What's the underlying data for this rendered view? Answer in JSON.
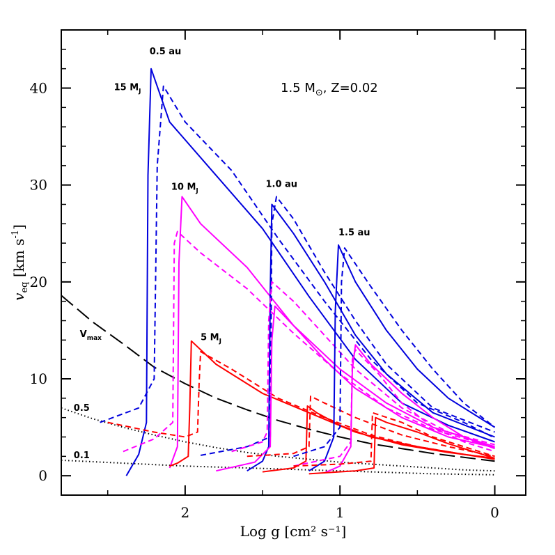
{
  "chart_data": {
    "type": "line",
    "title": "1.5 M⊙, Z=0.02",
    "title_parts": {
      "main": "1.5 M",
      "sub": "⊙",
      "rest": ", Z=0.02"
    },
    "xlabel": "Log g [cm² s⁻¹]",
    "ylabel_parts": {
      "main": "v",
      "sub": "eq",
      "rest": " [km s",
      "sup": "-1",
      "end": "]"
    },
    "xlim": [
      2.8,
      -0.2
    ],
    "ylim": [
      -2,
      46
    ],
    "x_ticks": [
      2,
      1,
      0
    ],
    "x_tick_labels": [
      "2",
      "1",
      "0"
    ],
    "y_ticks": [
      0,
      10,
      20,
      30,
      40
    ],
    "y_tick_labels": [
      "0",
      "10",
      "20",
      "30",
      "40"
    ],
    "annotations": [
      {
        "text": "0.5 au",
        "x": 2.23,
        "y": 43.5
      },
      {
        "text": "1.0 au",
        "x": 1.48,
        "y": 29.8
      },
      {
        "text": "1.5 au",
        "x": 1.01,
        "y": 24.8
      },
      {
        "text": "15 M",
        "sub": "J",
        "x": 2.46,
        "y": 39.8
      },
      {
        "text": "10 M",
        "sub": "J",
        "x": 2.09,
        "y": 29.5
      },
      {
        "text": "5 M",
        "sub": "J",
        "x": 1.9,
        "y": 14.0
      },
      {
        "text": "V",
        "sub": "max",
        "x": 2.68,
        "y": 14.3
      },
      {
        "text": "0.5",
        "x": 2.72,
        "y": 6.7
      },
      {
        "text": "0.1",
        "x": 2.72,
        "y": 1.8
      }
    ],
    "series": [
      {
        "name": "Vmax",
        "color": "#000000",
        "dash": "longdash",
        "points": [
          [
            2.8,
            18.6
          ],
          [
            2.6,
            15.9
          ],
          [
            2.4,
            13.6
          ],
          [
            2.2,
            11.2
          ],
          [
            2.0,
            9.5
          ],
          [
            1.8,
            8.0
          ],
          [
            1.6,
            6.8
          ],
          [
            1.4,
            5.7
          ],
          [
            1.2,
            4.8
          ],
          [
            1.0,
            4.0
          ],
          [
            0.8,
            3.3
          ],
          [
            0.6,
            2.8
          ],
          [
            0.4,
            2.3
          ],
          [
            0.2,
            1.9
          ],
          [
            0.0,
            1.5
          ]
        ]
      },
      {
        "name": "0.5 Vmax",
        "color": "#000000",
        "dash": "dotted",
        "points": [
          [
            2.8,
            7.0
          ],
          [
            2.6,
            5.9
          ],
          [
            2.4,
            5.0
          ],
          [
            2.2,
            4.2
          ],
          [
            2.0,
            3.5
          ],
          [
            1.8,
            2.9
          ],
          [
            1.6,
            2.4
          ],
          [
            1.4,
            2.0
          ],
          [
            1.2,
            1.7
          ],
          [
            1.0,
            1.4
          ],
          [
            0.8,
            1.2
          ],
          [
            0.6,
            1.0
          ],
          [
            0.4,
            0.8
          ],
          [
            0.2,
            0.6
          ],
          [
            0.0,
            0.5
          ]
        ]
      },
      {
        "name": "0.1 Vmax",
        "color": "#000000",
        "dash": "dotted",
        "points": [
          [
            2.8,
            1.6
          ],
          [
            2.4,
            1.3
          ],
          [
            2.0,
            1.0
          ],
          [
            1.6,
            0.8
          ],
          [
            1.2,
            0.6
          ],
          [
            0.8,
            0.4
          ],
          [
            0.4,
            0.2
          ],
          [
            0.0,
            0.1
          ]
        ]
      },
      {
        "name": "15 MJ 0.5 au",
        "color": "#0000dd",
        "dash": "solid",
        "points": [
          [
            2.38,
            0
          ],
          [
            2.3,
            2.2
          ],
          [
            2.25,
            5.5
          ],
          [
            2.24,
            31
          ],
          [
            2.22,
            42
          ],
          [
            2.1,
            36.5
          ],
          [
            1.8,
            31
          ],
          [
            1.5,
            25.5
          ],
          [
            1.2,
            18.5
          ],
          [
            0.9,
            12
          ],
          [
            0.6,
            7.5
          ],
          [
            0.3,
            5.2
          ],
          [
            0.0,
            3.5
          ]
        ]
      },
      {
        "name": "15 MJ 0.5 au dashed",
        "color": "#0000dd",
        "dash": "dashed",
        "points": [
          [
            2.55,
            5.5
          ],
          [
            2.3,
            7
          ],
          [
            2.2,
            10
          ],
          [
            2.18,
            32
          ],
          [
            2.14,
            40.2
          ],
          [
            2.0,
            36.5
          ],
          [
            1.7,
            31.5
          ],
          [
            1.4,
            24.5
          ],
          [
            1.1,
            18
          ],
          [
            0.8,
            12
          ],
          [
            0.5,
            7.5
          ],
          [
            0.2,
            5.5
          ],
          [
            0.0,
            3.9
          ]
        ]
      },
      {
        "name": "10 MJ 0.5 au",
        "color": "#ff00ff",
        "dash": "solid",
        "points": [
          [
            2.1,
            0.8
          ],
          [
            2.05,
            3
          ],
          [
            2.04,
            22
          ],
          [
            2.02,
            28.8
          ],
          [
            1.9,
            26
          ],
          [
            1.6,
            21.5
          ],
          [
            1.3,
            15.5
          ],
          [
            1.0,
            11
          ],
          [
            0.7,
            7.5
          ],
          [
            0.4,
            5
          ],
          [
            0.0,
            3
          ]
        ]
      },
      {
        "name": "10 MJ 0.5 au dashed",
        "color": "#ff00ff",
        "dash": "dashed",
        "points": [
          [
            2.4,
            2.5
          ],
          [
            2.2,
            3.8
          ],
          [
            2.08,
            5.5
          ],
          [
            2.07,
            24
          ],
          [
            2.05,
            25.2
          ],
          [
            1.9,
            23
          ],
          [
            1.6,
            19.3
          ],
          [
            1.3,
            14.7
          ],
          [
            1.0,
            10.5
          ],
          [
            0.7,
            7
          ],
          [
            0.4,
            4.8
          ],
          [
            0.0,
            2.9
          ]
        ]
      },
      {
        "name": "5 MJ 0.5 au",
        "color": "#ff0000",
        "dash": "solid",
        "points": [
          [
            2.1,
            1
          ],
          [
            2.05,
            1.3
          ],
          [
            1.98,
            2
          ],
          [
            1.97,
            7
          ],
          [
            1.96,
            13.9
          ],
          [
            1.8,
            11.5
          ],
          [
            1.5,
            8.5
          ],
          [
            1.2,
            6.5
          ],
          [
            0.9,
            4.5
          ],
          [
            0.6,
            3.2
          ],
          [
            0.3,
            2.4
          ],
          [
            0.0,
            1.8
          ]
        ]
      },
      {
        "name": "5 MJ 0.5 au dashed",
        "color": "#ff0000",
        "dash": "dashed",
        "points": [
          [
            2.5,
            5.5
          ],
          [
            2.2,
            4.5
          ],
          [
            2.0,
            4
          ],
          [
            1.92,
            4.5
          ],
          [
            1.91,
            9.5
          ],
          [
            1.9,
            12.8
          ],
          [
            1.7,
            11
          ],
          [
            1.4,
            8
          ],
          [
            1.1,
            6
          ],
          [
            0.8,
            4.2
          ],
          [
            0.5,
            3
          ],
          [
            0.2,
            2.2
          ],
          [
            0.0,
            1.8
          ]
        ]
      },
      {
        "name": "15 MJ 1.0 au",
        "color": "#0000dd",
        "dash": "solid",
        "points": [
          [
            1.6,
            0.5
          ],
          [
            1.5,
            1.5
          ],
          [
            1.46,
            3
          ],
          [
            1.45,
            19
          ],
          [
            1.44,
            28
          ],
          [
            1.3,
            25
          ],
          [
            1.1,
            20
          ],
          [
            0.9,
            14.5
          ],
          [
            0.7,
            10.5
          ],
          [
            0.4,
            6.5
          ],
          [
            0.0,
            4.0
          ]
        ]
      },
      {
        "name": "15 MJ 1.0 au dashed",
        "color": "#0000dd",
        "dash": "dashed",
        "points": [
          [
            1.9,
            2.1
          ],
          [
            1.6,
            3
          ],
          [
            1.45,
            4
          ],
          [
            1.44,
            26
          ],
          [
            1.41,
            28.8
          ],
          [
            1.3,
            26.5
          ],
          [
            1.1,
            21
          ],
          [
            0.9,
            16
          ],
          [
            0.7,
            11.5
          ],
          [
            0.4,
            7
          ],
          [
            0.0,
            4.5
          ]
        ]
      },
      {
        "name": "10 MJ 1.0 au",
        "color": "#ff00ff",
        "dash": "solid",
        "points": [
          [
            1.8,
            0.5
          ],
          [
            1.55,
            1.4
          ],
          [
            1.45,
            3
          ],
          [
            1.44,
            14
          ],
          [
            1.42,
            17.5
          ],
          [
            1.3,
            15.5
          ],
          [
            1.1,
            12
          ],
          [
            0.9,
            9
          ],
          [
            0.6,
            6
          ],
          [
            0.3,
            4
          ],
          [
            0.0,
            2.9
          ]
        ]
      },
      {
        "name": "10 MJ 1.0 au dashed",
        "color": "#ff00ff",
        "dash": "dashed",
        "points": [
          [
            1.7,
            2.5
          ],
          [
            1.5,
            3.5
          ],
          [
            1.47,
            4.5
          ],
          [
            1.46,
            16
          ],
          [
            1.44,
            20
          ],
          [
            1.3,
            18
          ],
          [
            1.1,
            14.5
          ],
          [
            0.9,
            11
          ],
          [
            0.6,
            7
          ],
          [
            0.3,
            4.5
          ],
          [
            0.0,
            3.2
          ]
        ]
      },
      {
        "name": "5 MJ 1.0 au",
        "color": "#ff0000",
        "dash": "solid",
        "points": [
          [
            1.5,
            0.4
          ],
          [
            1.3,
            0.8
          ],
          [
            1.22,
            1.5
          ],
          [
            1.21,
            7.2
          ],
          [
            1.15,
            6.5
          ],
          [
            1.0,
            5.2
          ],
          [
            0.8,
            4
          ],
          [
            0.5,
            3
          ],
          [
            0.2,
            2.2
          ],
          [
            0.0,
            1.7
          ]
        ]
      },
      {
        "name": "5 MJ 1.0 au dashed",
        "color": "#ff0000",
        "dash": "dashed",
        "points": [
          [
            1.6,
            2
          ],
          [
            1.3,
            2.3
          ],
          [
            1.2,
            3
          ],
          [
            1.19,
            8.2
          ],
          [
            1.1,
            7.5
          ],
          [
            0.9,
            6
          ],
          [
            0.6,
            4.2
          ],
          [
            0.3,
            3
          ],
          [
            0.0,
            2
          ]
        ]
      },
      {
        "name": "15 MJ 1.5 au",
        "color": "#0000dd",
        "dash": "solid",
        "points": [
          [
            1.2,
            0.5
          ],
          [
            1.1,
            1.5
          ],
          [
            1.04,
            4
          ],
          [
            1.03,
            17
          ],
          [
            1.01,
            23.8
          ],
          [
            0.9,
            20
          ],
          [
            0.7,
            15
          ],
          [
            0.5,
            11
          ],
          [
            0.3,
            8
          ],
          [
            0.0,
            5
          ]
        ]
      },
      {
        "name": "15 MJ 1.5 au dashed",
        "color": "#0000dd",
        "dash": "dashed",
        "points": [
          [
            1.3,
            2
          ],
          [
            1.1,
            3
          ],
          [
            1.0,
            5
          ],
          [
            0.99,
            20
          ],
          [
            0.97,
            23.5
          ],
          [
            0.8,
            19.5
          ],
          [
            0.6,
            15
          ],
          [
            0.4,
            11
          ],
          [
            0.2,
            7.5
          ],
          [
            0.0,
            5
          ]
        ]
      },
      {
        "name": "10 MJ 1.5 au",
        "color": "#ff00ff",
        "dash": "solid",
        "points": [
          [
            1.1,
            0.3
          ],
          [
            1.0,
            1
          ],
          [
            0.93,
            3
          ],
          [
            0.92,
            11
          ],
          [
            0.9,
            13.5
          ],
          [
            0.8,
            11.5
          ],
          [
            0.6,
            8.5
          ],
          [
            0.4,
            6
          ],
          [
            0.2,
            4
          ],
          [
            0.0,
            2.8
          ]
        ]
      },
      {
        "name": "10 MJ 1.5 au dashed",
        "color": "#ff00ff",
        "dash": "dashed",
        "points": [
          [
            1.3,
            1
          ],
          [
            1.0,
            2
          ],
          [
            0.93,
            3.5
          ],
          [
            0.92,
            12
          ],
          [
            0.9,
            13
          ],
          [
            0.75,
            10.5
          ],
          [
            0.6,
            7.5
          ],
          [
            0.4,
            5
          ],
          [
            0.2,
            3.5
          ],
          [
            0.0,
            2.5
          ]
        ]
      },
      {
        "name": "5 MJ 1.5 au",
        "color": "#ff0000",
        "dash": "solid",
        "points": [
          [
            1.2,
            0.2
          ],
          [
            0.9,
            0.5
          ],
          [
            0.78,
            0.8
          ],
          [
            0.77,
            6
          ],
          [
            0.7,
            5.5
          ],
          [
            0.5,
            4.5
          ],
          [
            0.3,
            3.3
          ],
          [
            0.0,
            1.8
          ]
        ]
      },
      {
        "name": "5 MJ 1.5 au dashed",
        "color": "#ff0000",
        "dash": "dashed",
        "points": [
          [
            1.3,
            1
          ],
          [
            1.0,
            1.2
          ],
          [
            0.8,
            1.5
          ],
          [
            0.79,
            6.5
          ],
          [
            0.6,
            5.5
          ],
          [
            0.4,
            4
          ],
          [
            0.2,
            3
          ],
          [
            0.0,
            2
          ]
        ]
      }
    ]
  }
}
